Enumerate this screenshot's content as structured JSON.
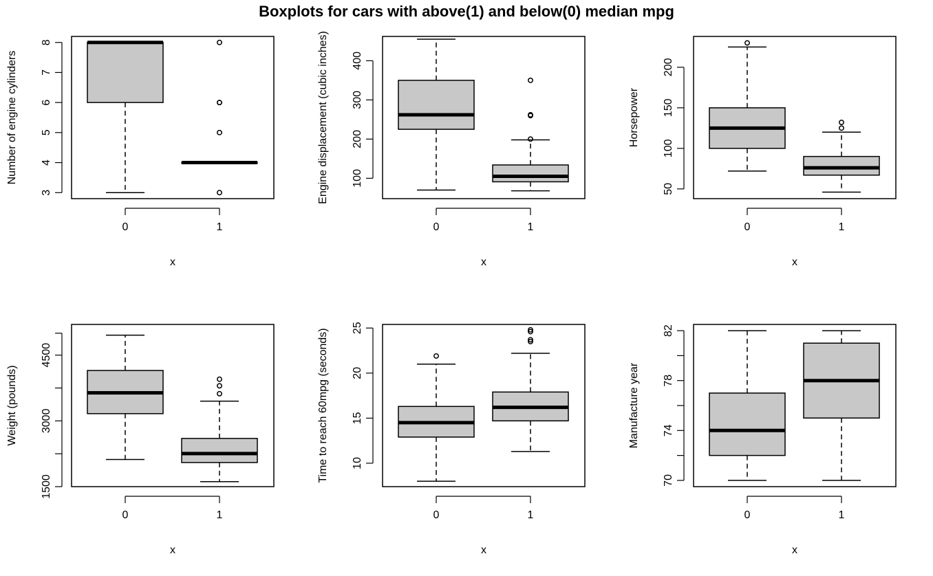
{
  "title": "Boxplots for cars with above(1) and below(0) median mpg",
  "chart_data": [
    {
      "type": "boxplot",
      "categories": [
        "0",
        "1"
      ],
      "xlabel": "x",
      "ylabel": "Number of engine cylinders",
      "ylim": [
        2.8,
        8.2
      ],
      "yticks": [
        3,
        4,
        5,
        6,
        7,
        8
      ],
      "boxes": [
        {
          "category": "0",
          "whisker_low": 3,
          "q1": 6,
          "median": 8,
          "q3": 8,
          "whisker_high": 8,
          "outliers": []
        },
        {
          "category": "1",
          "whisker_low": 4,
          "q1": 4,
          "median": 4,
          "q3": 4,
          "whisker_high": 4,
          "outliers": [
            3,
            5,
            6,
            6,
            8
          ]
        }
      ]
    },
    {
      "type": "boxplot",
      "categories": [
        "0",
        "1"
      ],
      "xlabel": "x",
      "ylabel": "Engine displacement (cubic inches)",
      "ylim": [
        48,
        462
      ],
      "yticks": [
        100,
        200,
        300,
        400
      ],
      "boxes": [
        {
          "category": "0",
          "whisker_low": 70,
          "q1": 225,
          "median": 262,
          "q3": 350,
          "whisker_high": 455,
          "outliers": []
        },
        {
          "category": "1",
          "whisker_low": 68,
          "q1": 91,
          "median": 105,
          "q3": 134,
          "whisker_high": 198,
          "outliers": [
            200,
            260,
            262,
            350
          ]
        }
      ]
    },
    {
      "type": "boxplot",
      "categories": [
        "0",
        "1"
      ],
      "xlabel": "x",
      "ylabel": "Horsepower",
      "ylim": [
        38,
        238
      ],
      "yticks": [
        50,
        100,
        150,
        200
      ],
      "boxes": [
        {
          "category": "0",
          "whisker_low": 72,
          "q1": 100,
          "median": 125,
          "q3": 150,
          "whisker_high": 225,
          "outliers": [
            230
          ]
        },
        {
          "category": "1",
          "whisker_low": 46,
          "q1": 67,
          "median": 76,
          "q3": 90,
          "whisker_high": 120,
          "outliers": [
            125,
            132
          ]
        }
      ]
    },
    {
      "type": "boxplot",
      "categories": [
        "0",
        "1"
      ],
      "xlabel": "x",
      "ylabel": "Weight (pounds)",
      "ylim": [
        1500,
        5200
      ],
      "yticks": [
        1500,
        3000,
        4500
      ],
      "minor_yticks": [
        2250,
        3750,
        5000
      ],
      "boxes": [
        {
          "category": "0",
          "whisker_low": 2120,
          "q1": 3165,
          "median": 3640,
          "q3": 4150,
          "whisker_high": 4955,
          "outliers": []
        },
        {
          "category": "1",
          "whisker_low": 1613,
          "q1": 2050,
          "median": 2255,
          "q3": 2600,
          "whisker_high": 3450,
          "outliers": [
            3620,
            3800,
            3950
          ]
        }
      ]
    },
    {
      "type": "boxplot",
      "categories": [
        "0",
        "1"
      ],
      "xlabel": "x",
      "ylabel": "Time to reach 60mpg (seconds)",
      "ylim": [
        7.4,
        25.4
      ],
      "yticks": [
        10,
        15,
        20,
        25
      ],
      "boxes": [
        {
          "category": "0",
          "whisker_low": 8,
          "q1": 12.9,
          "median": 14.5,
          "q3": 16.3,
          "whisker_high": 21,
          "outliers": [
            21.9
          ]
        },
        {
          "category": "1",
          "whisker_low": 11.3,
          "q1": 14.7,
          "median": 16.2,
          "q3": 17.9,
          "whisker_high": 22.2,
          "outliers": [
            23.5,
            23.7,
            24.6,
            24.8
          ]
        }
      ]
    },
    {
      "type": "boxplot",
      "categories": [
        "0",
        "1"
      ],
      "xlabel": "x",
      "ylabel": "Manufacture year",
      "ylim": [
        69.5,
        82.5
      ],
      "yticks": [
        70,
        74,
        78,
        82
      ],
      "minor_yticks": [
        72,
        76,
        80
      ],
      "boxes": [
        {
          "category": "0",
          "whisker_low": 70,
          "q1": 72,
          "median": 74,
          "q3": 77,
          "whisker_high": 82,
          "outliers": []
        },
        {
          "category": "1",
          "whisker_low": 70,
          "q1": 75,
          "median": 78,
          "q3": 81,
          "whisker_high": 82,
          "outliers": []
        }
      ]
    }
  ]
}
